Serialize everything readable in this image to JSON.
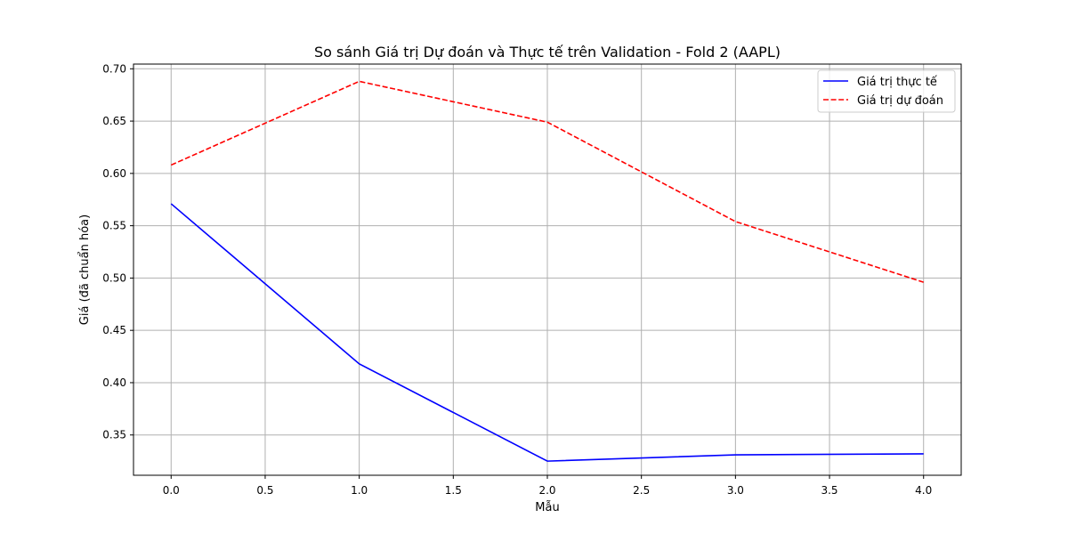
{
  "chart_data": {
    "type": "line",
    "title": "So sánh Giá trị Dự đoán và Thực tế trên Validation - Fold 2 (AAPL)",
    "xlabel": "Mẫu",
    "ylabel": "Giá (đã chuẩn hóa)",
    "x": [
      0,
      1,
      2,
      3,
      4
    ],
    "xlim": [
      -0.2,
      4.2
    ],
    "ylim": [
      0.3115,
      0.7045
    ],
    "xticks": [
      "0.0",
      "0.5",
      "1.0",
      "1.5",
      "2.0",
      "2.5",
      "3.0",
      "3.5",
      "4.0"
    ],
    "yticks": [
      "0.35",
      "0.40",
      "0.45",
      "0.50",
      "0.55",
      "0.60",
      "0.65",
      "0.70"
    ],
    "grid": true,
    "legend_position": "top-right",
    "series": [
      {
        "name": "Giá trị thực tế",
        "values": [
          0.571,
          0.418,
          0.325,
          0.331,
          0.332
        ],
        "color": "#0000ff",
        "style": "solid"
      },
      {
        "name": "Giá trị dự đoán",
        "values": [
          0.608,
          0.688,
          0.649,
          0.554,
          0.496
        ],
        "color": "#ff0000",
        "style": "dashed"
      }
    ]
  }
}
